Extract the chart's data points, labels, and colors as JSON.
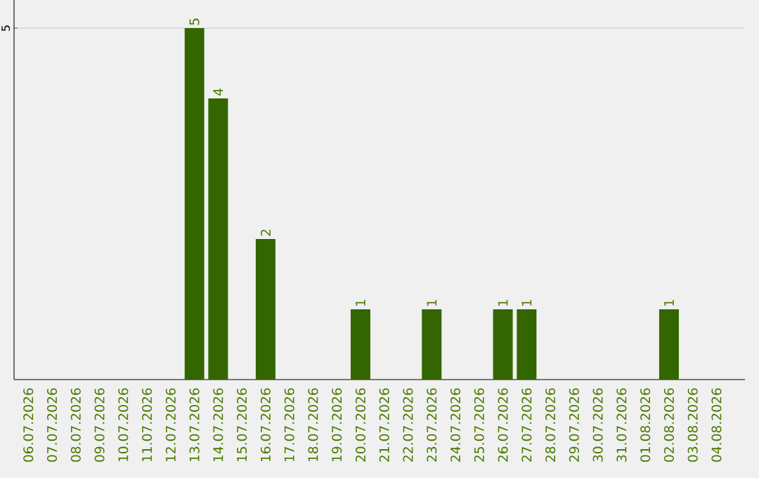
{
  "chart_data": {
    "type": "bar",
    "categories": [
      "06.07.2026",
      "07.07.2026",
      "08.07.2026",
      "09.07.2026",
      "10.07.2026",
      "11.07.2026",
      "12.07.2026",
      "13.07.2026",
      "14.07.2026",
      "15.07.2026",
      "16.07.2026",
      "17.07.2026",
      "18.07.2026",
      "19.07.2026",
      "20.07.2026",
      "21.07.2026",
      "22.07.2026",
      "23.07.2026",
      "24.07.2026",
      "25.07.2026",
      "26.07.2026",
      "27.07.2026",
      "28.07.2026",
      "29.07.2026",
      "30.07.2026",
      "31.07.2026",
      "01.08.2026",
      "02.08.2026",
      "03.08.2026",
      "04.08.2026"
    ],
    "values": [
      null,
      null,
      null,
      null,
      null,
      null,
      null,
      5,
      4,
      null,
      2,
      null,
      null,
      null,
      1,
      null,
      null,
      1,
      null,
      null,
      1,
      1,
      null,
      null,
      null,
      null,
      null,
      1,
      null,
      null
    ],
    "color": "#336600",
    "ylim": [
      0,
      5.4
    ],
    "yticks": [
      5
    ],
    "grid": "y",
    "data_labels": true
  }
}
